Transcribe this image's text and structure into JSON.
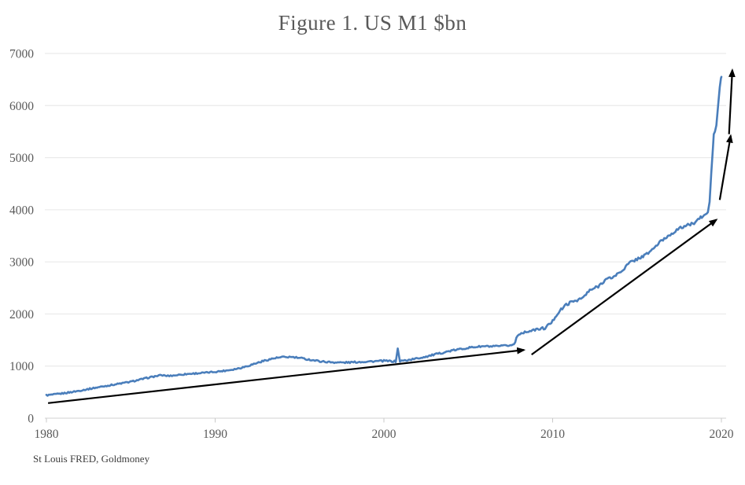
{
  "chart_data": {
    "type": "line",
    "title": "Figure 1. US M1 $bn",
    "source_note": "St Louis FRED, Goldmoney",
    "xlabel": "",
    "ylabel": "",
    "xlim": [
      1980,
      2020.3
    ],
    "ylim": [
      0,
      7000
    ],
    "x_ticks": [
      "1980",
      "1990",
      "2000",
      "2010",
      "2020"
    ],
    "x_tick_values": [
      1980,
      1990,
      2000,
      2010,
      2020
    ],
    "y_ticks": [
      "0",
      "1000",
      "2000",
      "3000",
      "4000",
      "5000",
      "6000",
      "7000"
    ],
    "y_tick_values": [
      0,
      1000,
      2000,
      3000,
      4000,
      5000,
      6000,
      7000
    ],
    "grid": true,
    "legend": "none",
    "colors": {
      "series": "#4a7ebb",
      "gridline": "#e6e6e6",
      "axis_line": "#d2d2d2",
      "tick_mark": "#c9c9c9",
      "labels": "#595959",
      "annotation": "#000000"
    },
    "series": [
      {
        "name": "US M1 ($bn)",
        "points": [
          [
            1980.0,
            440
          ],
          [
            1980.5,
            455
          ],
          [
            1981.0,
            478
          ],
          [
            1981.5,
            502
          ],
          [
            1982.0,
            530
          ],
          [
            1982.5,
            560
          ],
          [
            1983.0,
            590
          ],
          [
            1983.5,
            617
          ],
          [
            1984.0,
            645
          ],
          [
            1984.5,
            672
          ],
          [
            1985.0,
            700
          ],
          [
            1985.5,
            737
          ],
          [
            1986.0,
            775
          ],
          [
            1986.5,
            808
          ],
          [
            1986.8,
            825
          ],
          [
            1987.2,
            812
          ],
          [
            1987.6,
            822
          ],
          [
            1988.0,
            838
          ],
          [
            1988.5,
            852
          ],
          [
            1989.0,
            863
          ],
          [
            1989.5,
            875
          ],
          [
            1990.0,
            890
          ],
          [
            1990.5,
            908
          ],
          [
            1991.0,
            932
          ],
          [
            1991.5,
            965
          ],
          [
            1992.0,
            1010
          ],
          [
            1992.5,
            1062
          ],
          [
            1993.0,
            1112
          ],
          [
            1993.5,
            1150
          ],
          [
            1994.0,
            1170
          ],
          [
            1994.4,
            1175
          ],
          [
            1994.8,
            1163
          ],
          [
            1995.2,
            1145
          ],
          [
            1995.7,
            1118
          ],
          [
            1996.2,
            1093
          ],
          [
            1996.7,
            1078
          ],
          [
            1997.2,
            1070
          ],
          [
            1997.7,
            1068
          ],
          [
            1998.2,
            1074
          ],
          [
            1998.7,
            1082
          ],
          [
            1999.2,
            1090
          ],
          [
            1999.6,
            1094
          ],
          [
            2000.0,
            1100
          ],
          [
            2000.4,
            1094
          ],
          [
            2000.7,
            1088
          ],
          [
            2000.82,
            1330
          ],
          [
            2000.95,
            1095
          ],
          [
            2001.4,
            1115
          ],
          [
            2002.0,
            1148
          ],
          [
            2002.5,
            1183
          ],
          [
            2003.0,
            1220
          ],
          [
            2003.5,
            1258
          ],
          [
            2004.0,
            1295
          ],
          [
            2004.5,
            1325
          ],
          [
            2005.0,
            1352
          ],
          [
            2005.5,
            1370
          ],
          [
            2006.0,
            1380
          ],
          [
            2006.4,
            1374
          ],
          [
            2006.8,
            1380
          ],
          [
            2007.2,
            1390
          ],
          [
            2007.5,
            1400
          ],
          [
            2007.7,
            1412
          ],
          [
            2007.78,
            1460
          ],
          [
            2007.85,
            1545
          ],
          [
            2008.0,
            1615
          ],
          [
            2008.35,
            1650
          ],
          [
            2008.95,
            1695
          ],
          [
            2009.55,
            1730
          ],
          [
            2010.0,
            1860
          ],
          [
            2010.15,
            1950
          ],
          [
            2010.35,
            2030
          ],
          [
            2010.8,
            2180
          ],
          [
            2011.3,
            2255
          ],
          [
            2011.75,
            2300
          ],
          [
            2012.2,
            2450
          ],
          [
            2012.7,
            2530
          ],
          [
            2013.1,
            2655
          ],
          [
            2013.6,
            2710
          ],
          [
            2014.1,
            2830
          ],
          [
            2014.55,
            2980
          ],
          [
            2015.0,
            3055
          ],
          [
            2015.5,
            3130
          ],
          [
            2015.9,
            3235
          ],
          [
            2016.4,
            3390
          ],
          [
            2016.9,
            3510
          ],
          [
            2017.35,
            3610
          ],
          [
            2017.8,
            3685
          ],
          [
            2018.3,
            3730
          ],
          [
            2018.7,
            3835
          ],
          [
            2019.05,
            3900
          ],
          [
            2019.2,
            3950
          ],
          [
            2019.3,
            4150
          ],
          [
            2019.4,
            4700
          ],
          [
            2019.5,
            5200
          ],
          [
            2019.55,
            5450
          ],
          [
            2019.62,
            5500
          ],
          [
            2019.7,
            5620
          ],
          [
            2019.8,
            5980
          ],
          [
            2019.9,
            6350
          ],
          [
            2019.97,
            6520
          ],
          [
            2020.0,
            6550
          ]
        ]
      }
    ],
    "annotations": [
      {
        "name": "trend-arrow-1980-2008",
        "from": [
          1980.1,
          290
        ],
        "to": [
          2008.3,
          1310
        ]
      },
      {
        "name": "trend-arrow-2009-2019",
        "from": [
          2008.75,
          1220
        ],
        "to": [
          2019.7,
          3810
        ]
      },
      {
        "name": "trend-arrow-2020-accel-1",
        "from": [
          2019.9,
          4190
        ],
        "to": [
          2020.55,
          5420
        ]
      },
      {
        "name": "trend-arrow-2020-accel-2",
        "from": [
          2020.45,
          5450
        ],
        "to": [
          2020.65,
          6680
        ]
      }
    ]
  }
}
